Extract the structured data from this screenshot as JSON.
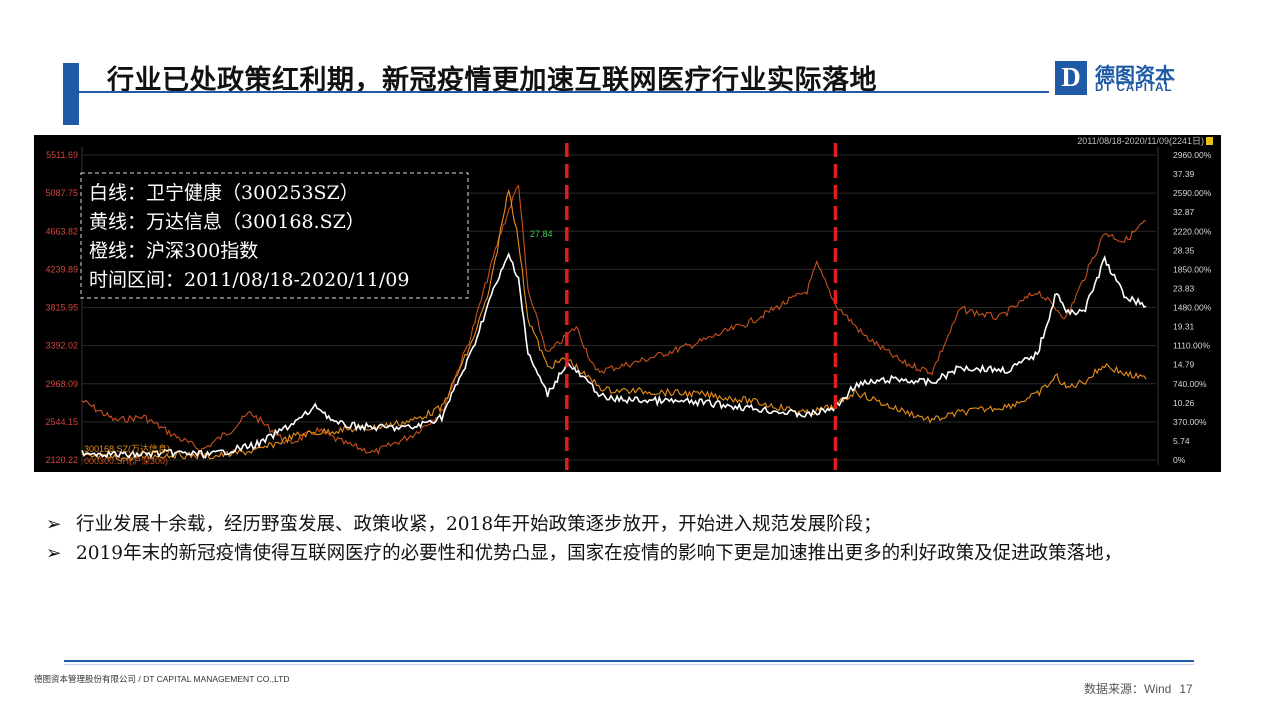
{
  "header": {
    "title": "行业已处政策红利期，新冠疫情更加速互联网医疗行业实际落地",
    "logo_mark": "D",
    "logo_cn": "德图资本",
    "logo_en": "DT CAPITAL"
  },
  "colors": {
    "brand": "#1f5aa6",
    "chart_bg": "#000000",
    "axis_label": "#d0453b",
    "series_white": "#ffffff",
    "series_yellow": "#e8901a",
    "series_orange": "#c8501e",
    "marker_dashed": "#e11d1d"
  },
  "chart_data": {
    "type": "line",
    "range_label": "2011/08/18-2020/11/09(2241日)",
    "x_range": [
      "2011-08-18",
      "2020-11-09"
    ],
    "legend_box": [
      "白线：卫宁健康（300253SZ）",
      "黄线：万达信息（300168.SZ）",
      "橙线：沪深300指数",
      "时间区间：2011/08/18-2020/11/09"
    ],
    "left_axis": {
      "ticks": [
        "5511.69",
        "5087.75",
        "4663.82",
        "4239.89",
        "3815.95",
        "3392.02",
        "2968.09",
        "2544.15",
        "2120.22"
      ],
      "ylim": [
        2120.22,
        5511.69
      ]
    },
    "right_axis": {
      "percent_ticks": [
        "2960.00%",
        "2590.00%",
        "2220.00%",
        "1850.00%",
        "1480.00%",
        "1110.00%",
        "740.00%",
        "370.00%",
        "0%"
      ],
      "price_ticks": [
        "37.39",
        "32.87",
        "28.35",
        "23.83",
        "19.31",
        "14.79",
        "10.26",
        "5.74"
      ]
    },
    "peak_label": "27.84",
    "series_labels": [
      "300168.SZ(万达信息)",
      "000300.SH(沪深300)"
    ],
    "event_markers": [
      "2015-11",
      "2018-03"
    ],
    "series": [
      {
        "name": "卫宁健康（300253SZ）",
        "color": "#ffffff",
        "points": [
          [
            "2011-08-18",
            2210
          ],
          [
            "2012-01-01",
            2175
          ],
          [
            "2012-06-01",
            2200
          ],
          [
            "2012-10-01",
            2180
          ],
          [
            "2013-03-01",
            2300
          ],
          [
            "2013-07-01",
            2560
          ],
          [
            "2013-09-01",
            2720
          ],
          [
            "2013-11-01",
            2520
          ],
          [
            "2014-03-01",
            2480
          ],
          [
            "2014-07-01",
            2480
          ],
          [
            "2014-10-01",
            2600
          ],
          [
            "2015-01-01",
            3300
          ],
          [
            "2015-03-01",
            3900
          ],
          [
            "2015-05-01",
            4400
          ],
          [
            "2015-06-01",
            4150
          ],
          [
            "2015-07-01",
            3300
          ],
          [
            "2015-09-01",
            2850
          ],
          [
            "2015-11-01",
            3200
          ],
          [
            "2016-01-01",
            3000
          ],
          [
            "2016-03-01",
            2800
          ],
          [
            "2016-08-01",
            2780
          ],
          [
            "2017-01-01",
            2760
          ],
          [
            "2017-06-01",
            2700
          ],
          [
            "2017-12-01",
            2620
          ],
          [
            "2018-03-01",
            2700
          ],
          [
            "2018-05-01",
            2950
          ],
          [
            "2018-09-01",
            3020
          ],
          [
            "2019-01-01",
            2980
          ],
          [
            "2019-04-01",
            3150
          ],
          [
            "2019-09-01",
            3120
          ],
          [
            "2019-12-01",
            3300
          ],
          [
            "2020-02-01",
            4000
          ],
          [
            "2020-03-01",
            3750
          ],
          [
            "2020-05-01",
            3800
          ],
          [
            "2020-07-01",
            4350
          ],
          [
            "2020-09-01",
            3950
          ],
          [
            "2020-11-09",
            3830
          ]
        ]
      },
      {
        "name": "万达信息（300168.SZ）",
        "color": "#e8901a",
        "points": [
          [
            "2011-08-18",
            2160
          ],
          [
            "2012-01-01",
            2140
          ],
          [
            "2012-06-01",
            2180
          ],
          [
            "2012-10-01",
            2160
          ],
          [
            "2013-03-01",
            2230
          ],
          [
            "2013-07-01",
            2400
          ],
          [
            "2013-11-01",
            2450
          ],
          [
            "2014-03-01",
            2480
          ],
          [
            "2014-07-01",
            2560
          ],
          [
            "2014-10-01",
            2700
          ],
          [
            "2015-01-01",
            3400
          ],
          [
            "2015-03-01",
            4000
          ],
          [
            "2015-05-01",
            5150
          ],
          [
            "2015-06-01",
            4550
          ],
          [
            "2015-07-01",
            3700
          ],
          [
            "2015-09-01",
            3150
          ],
          [
            "2015-11-01",
            3250
          ],
          [
            "2016-01-01",
            3050
          ],
          [
            "2016-03-01",
            2900
          ],
          [
            "2016-08-01",
            2880
          ],
          [
            "2017-01-01",
            2850
          ],
          [
            "2017-06-01",
            2780
          ],
          [
            "2017-12-01",
            2640
          ],
          [
            "2018-03-01",
            2720
          ],
          [
            "2018-05-01",
            2880
          ],
          [
            "2018-09-01",
            2700
          ],
          [
            "2019-01-01",
            2560
          ],
          [
            "2019-04-01",
            2650
          ],
          [
            "2019-09-01",
            2720
          ],
          [
            "2019-12-01",
            2850
          ],
          [
            "2020-02-01",
            3050
          ],
          [
            "2020-03-01",
            2920
          ],
          [
            "2020-05-01",
            3000
          ],
          [
            "2020-07-01",
            3180
          ],
          [
            "2020-09-01",
            3080
          ],
          [
            "2020-11-09",
            3020
          ]
        ]
      },
      {
        "name": "沪深300指数",
        "color": "#c8501e",
        "points": [
          [
            "2011-08-18",
            2780
          ],
          [
            "2011-12-01",
            2560
          ],
          [
            "2012-03-01",
            2600
          ],
          [
            "2012-06-01",
            2400
          ],
          [
            "2012-09-01",
            2230
          ],
          [
            "2012-12-01",
            2450
          ],
          [
            "2013-02-01",
            2650
          ],
          [
            "2013-06-01",
            2300
          ],
          [
            "2013-09-01",
            2450
          ],
          [
            "2013-12-01",
            2300
          ],
          [
            "2014-03-01",
            2200
          ],
          [
            "2014-07-01",
            2400
          ],
          [
            "2014-10-01",
            2650
          ],
          [
            "2015-01-01",
            3500
          ],
          [
            "2015-04-01",
            4600
          ],
          [
            "2015-06-01",
            5200
          ],
          [
            "2015-07-01",
            4000
          ],
          [
            "2015-09-01",
            3300
          ],
          [
            "2015-12-01",
            3600
          ],
          [
            "2016-02-01",
            3100
          ],
          [
            "2016-06-01",
            3200
          ],
          [
            "2016-12-01",
            3400
          ],
          [
            "2017-06-01",
            3650
          ],
          [
            "2017-12-01",
            4000
          ],
          [
            "2018-01-01",
            4300
          ],
          [
            "2018-03-01",
            3850
          ],
          [
            "2018-06-01",
            3500
          ],
          [
            "2018-10-01",
            3200
          ],
          [
            "2019-01-01",
            3100
          ],
          [
            "2019-04-01",
            3800
          ],
          [
            "2019-08-01",
            3700
          ],
          [
            "2019-12-01",
            4000
          ],
          [
            "2020-03-01",
            3700
          ],
          [
            "2020-07-01",
            4650
          ],
          [
            "2020-09-01",
            4550
          ],
          [
            "2020-11-09",
            4780
          ]
        ]
      }
    ]
  },
  "bullets": [
    "行业发展十余载，经历野蛮发展、政策收紧，2018年开始政策逐步放开，开始进入规范发展阶段；",
    "2019年末的新冠疫情使得互联网医疗的必要性和优势凸显，国家在疫情的影响下更是加速推出更多的利好政策及促进政策落地，"
  ],
  "bullet_marker": "➢",
  "footer": {
    "company": "德图资本管理股份有限公司 / DT CAPITAL MANAGEMENT CO.,LTD",
    "source": "数据来源：Wind",
    "page": "17"
  }
}
